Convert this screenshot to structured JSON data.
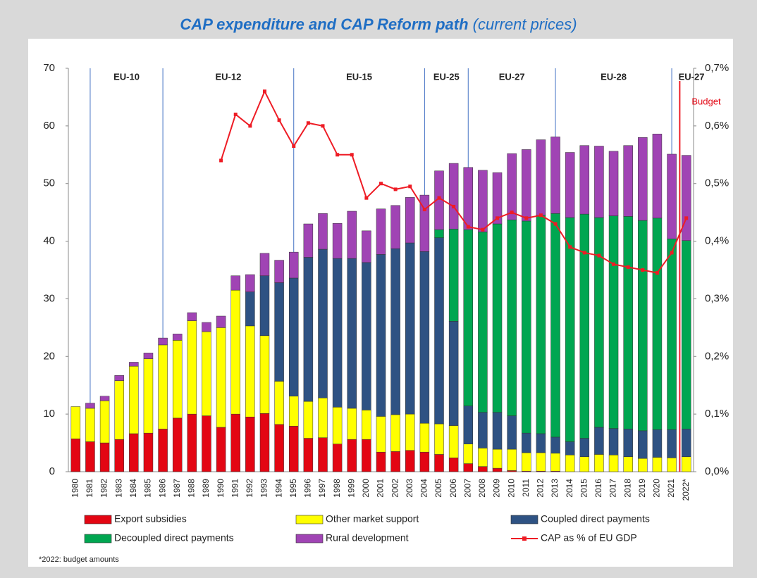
{
  "chart_data": {
    "type": "bar",
    "stacked": true,
    "title": "CAP expenditure and CAP Reform path",
    "subtitle": "(current prices)",
    "footnote": "*2022: budget amounts",
    "categories": [
      "1980",
      "1981",
      "1982",
      "1983",
      "1984",
      "1985",
      "1986",
      "1987",
      "1988",
      "1989",
      "1990",
      "1991",
      "1992",
      "1993",
      "1994",
      "1995",
      "1996",
      "1997",
      "1998",
      "1999",
      "2000",
      "2001",
      "2002",
      "2003",
      "2004",
      "2005",
      "2006",
      "2007",
      "2008",
      "2009",
      "2010",
      "2011",
      "2012",
      "2013",
      "2014",
      "2015",
      "2016",
      "2017",
      "2018",
      "2019",
      "2020",
      "2021",
      "2022*"
    ],
    "series": [
      {
        "name": "Export subsidies",
        "color": "#e30613",
        "values": [
          5.7,
          5.2,
          5.0,
          5.6,
          6.6,
          6.7,
          7.4,
          9.3,
          10.0,
          9.7,
          7.7,
          10.0,
          9.5,
          10.1,
          8.2,
          7.9,
          5.8,
          5.9,
          4.8,
          5.6,
          5.6,
          3.4,
          3.5,
          3.7,
          3.4,
          3.0,
          2.4,
          1.4,
          0.9,
          0.6,
          0.2,
          0.1,
          0.1,
          0.1,
          0,
          0,
          0,
          0,
          0,
          0,
          0,
          0,
          0
        ]
      },
      {
        "name": "Other market support",
        "color": "#ffff00",
        "values": [
          5.6,
          5.8,
          7.3,
          10.2,
          11.7,
          12.9,
          14.6,
          13.5,
          16.2,
          14.6,
          17.3,
          21.5,
          15.8,
          13.5,
          7.5,
          5.2,
          6.4,
          6.9,
          6.4,
          5.4,
          5.1,
          6.2,
          6.4,
          6.3,
          5.0,
          5.3,
          5.6,
          3.4,
          3.2,
          3.3,
          3.7,
          3.2,
          3.2,
          3.1,
          2.9,
          2.6,
          3.0,
          2.9,
          2.6,
          2.3,
          2.5,
          2.4,
          2.6
        ]
      },
      {
        "name": "Coupled direct payments",
        "color": "#2e5283",
        "values": [
          0,
          0,
          0,
          0,
          0,
          0,
          0,
          0,
          0,
          0,
          0,
          0,
          5.9,
          10.4,
          17.1,
          20.5,
          25.0,
          25.8,
          25.8,
          26.0,
          25.6,
          28.1,
          28.8,
          29.7,
          29.8,
          32.3,
          18.1,
          6.6,
          6.2,
          6.4,
          5.8,
          3.4,
          3.3,
          2.8,
          2.3,
          3.2,
          4.7,
          4.6,
          4.8,
          4.8,
          4.8,
          4.9,
          4.8
        ]
      },
      {
        "name": "Decoupled direct payments",
        "color": "#00a651",
        "values": [
          0,
          0,
          0,
          0,
          0,
          0,
          0,
          0,
          0,
          0,
          0,
          0,
          0,
          0,
          0,
          0,
          0,
          0,
          0,
          0,
          0,
          0,
          0,
          0,
          0,
          1.4,
          16.0,
          30.6,
          31.3,
          32.7,
          34.0,
          36.8,
          37.9,
          38.8,
          38.9,
          38.9,
          36.4,
          36.9,
          36.9,
          36.5,
          36.7,
          33.1,
          32.7
        ]
      },
      {
        "name": "Rural development",
        "color": "#a044b4",
        "values": [
          0,
          0.9,
          0.8,
          0.9,
          0.7,
          1.0,
          1.2,
          1.1,
          1.4,
          1.6,
          2.0,
          2.5,
          3.0,
          3.9,
          3.9,
          4.5,
          5.8,
          6.2,
          6.1,
          8.2,
          5.5,
          7.9,
          7.5,
          7.9,
          9.8,
          10.2,
          11.4,
          10.8,
          10.7,
          8.9,
          11.5,
          12.4,
          13.1,
          13.3,
          11.3,
          11.9,
          12.4,
          11.2,
          12.3,
          14.4,
          14.6,
          14.7,
          14.8
        ]
      },
      {
        "name": "CAP as % of EU GDP",
        "color": "#ee1c25",
        "type": "line",
        "axis": "y2",
        "values": [
          null,
          null,
          null,
          null,
          null,
          null,
          null,
          null,
          null,
          null,
          0.54,
          0.62,
          0.6,
          0.66,
          0.61,
          0.565,
          0.605,
          0.6,
          0.55,
          0.55,
          0.475,
          0.5,
          0.49,
          0.495,
          0.455,
          0.475,
          0.46,
          0.425,
          0.42,
          0.44,
          0.45,
          0.44,
          0.445,
          0.43,
          0.39,
          0.38,
          0.375,
          0.36,
          0.355,
          0.35,
          0.345,
          0.38,
          0.44
        ]
      }
    ],
    "ylim": [
      0,
      70
    ],
    "yticks": [
      0,
      10,
      20,
      30,
      40,
      50,
      60,
      70
    ],
    "y2lim": [
      0,
      0.7
    ],
    "y2ticks": [
      {
        "value": 0,
        "label": "0,0%"
      },
      {
        "value": 0.1,
        "label": "0,1%"
      },
      {
        "value": 0.2,
        "label": "0,2%"
      },
      {
        "value": 0.3,
        "label": "0,3%"
      },
      {
        "value": 0.4,
        "label": "0,4%"
      },
      {
        "value": 0.5,
        "label": "0,5%"
      },
      {
        "value": 0.6,
        "label": "0,6%"
      },
      {
        "value": 0.7,
        "label": "0,7%"
      }
    ],
    "enlargements": [
      {
        "label": "EU-10",
        "year": "1981"
      },
      {
        "label": "EU-12",
        "year": "1986"
      },
      {
        "label": "EU-15",
        "year": "1995"
      },
      {
        "label": "EU-25",
        "year": "2004"
      },
      {
        "label": "EU-27",
        "year": "2007"
      },
      {
        "label": "EU-28",
        "year": "2013"
      },
      {
        "label": "EU-27",
        "year": "2021"
      }
    ],
    "budget": {
      "label": "Budget",
      "year": "2022*"
    },
    "legend": "bottom"
  }
}
